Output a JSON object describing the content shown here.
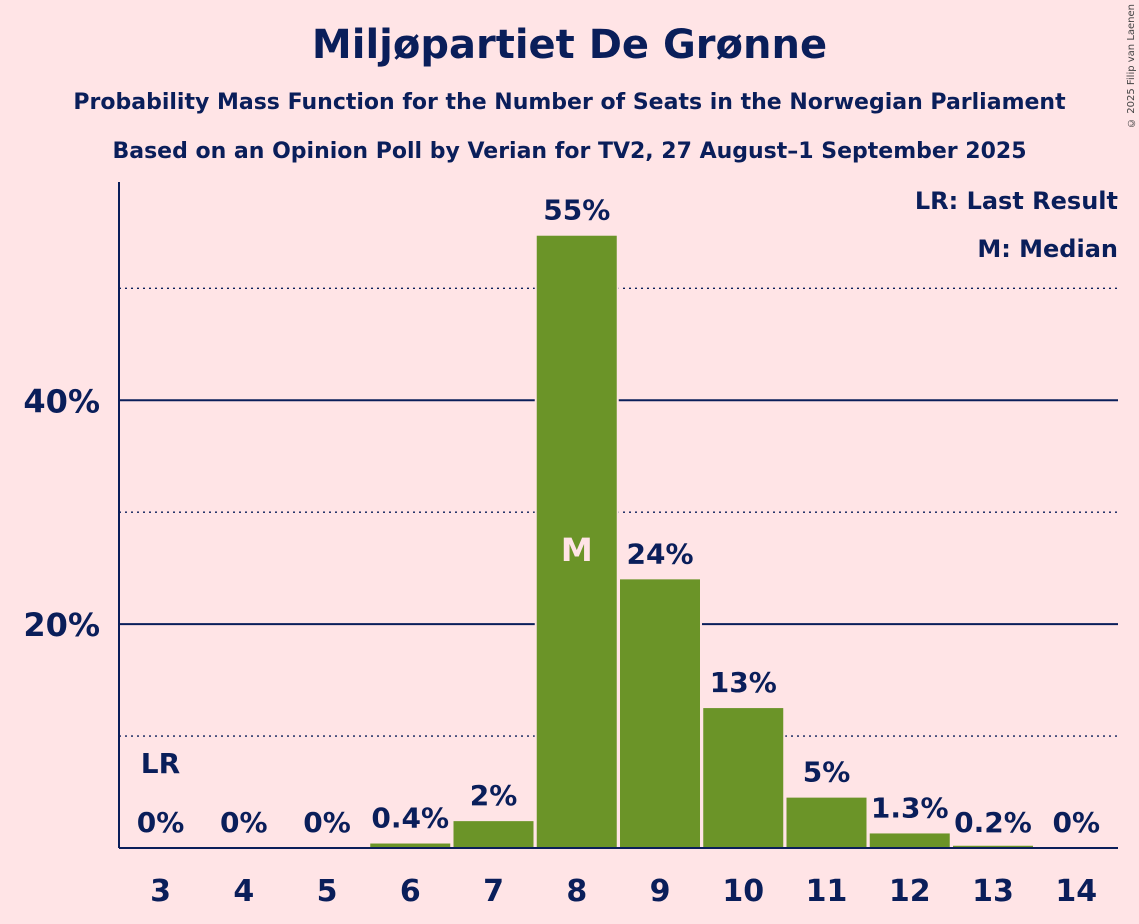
{
  "title": "Miljøpartiet De Grønne",
  "subtitle1": "Probability Mass Function for the Number of Seats in the Norwegian Parliament",
  "subtitle2": "Based on an Opinion Poll by Verian for TV2, 27 August–1 September 2025",
  "copyright": "© 2025 Filip van Laenen",
  "legend": {
    "lr": "LR: Last Result",
    "m": "M: Median"
  },
  "colors": {
    "bar": "#6B9428",
    "text": "#0A1E5A",
    "background": "#FFE4E6"
  },
  "chart_data": {
    "type": "bar",
    "title": "Miljøpartiet De Grønne",
    "categories": [
      "3",
      "4",
      "5",
      "6",
      "7",
      "8",
      "9",
      "10",
      "11",
      "12",
      "13",
      "14"
    ],
    "values": [
      0,
      0,
      0,
      0.4,
      2.4,
      54.7,
      24.0,
      12.5,
      4.5,
      1.3,
      0.2,
      0
    ],
    "labels": [
      "0%",
      "0%",
      "0%",
      "0.4%",
      "2%",
      "55%",
      "24%",
      "13%",
      "5%",
      "1.3%",
      "0.2%",
      "0%"
    ],
    "ylim": [
      0,
      59.5
    ],
    "y_ticks": [
      {
        "value": 20,
        "label": "20%"
      },
      {
        "value": 40,
        "label": "40%"
      }
    ],
    "y_minor_gridlines": [
      10,
      30,
      50
    ],
    "last_result": {
      "category": "3",
      "label": "LR"
    },
    "median": {
      "category": "8",
      "label": "M"
    },
    "legend_position": "top-right"
  }
}
